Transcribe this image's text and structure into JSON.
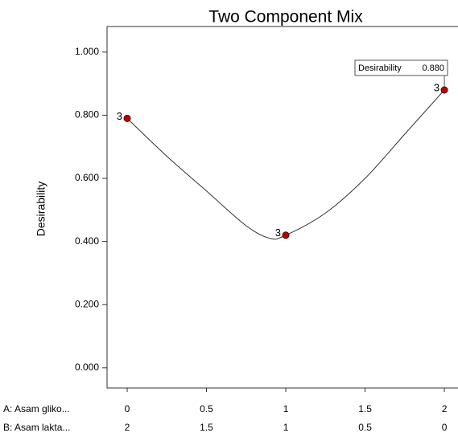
{
  "chart_data": {
    "type": "line",
    "title": "Two Component Mix",
    "y_label": "Desirability",
    "x_label": "A: Asam gliko...",
    "x2_label": "B: Asam lakta...",
    "xlim": [
      -0.127,
      2.086
    ],
    "ylim": [
      -0.064,
      1.081
    ],
    "xticks": [
      0,
      0.5,
      1,
      1.5,
      2
    ],
    "x2ticks": [
      2,
      1.5,
      1,
      0.5,
      0
    ],
    "yticks": [
      {
        "value": 0,
        "label": "0.000"
      },
      {
        "value": 0.2,
        "label": "0.200"
      },
      {
        "value": 0.4,
        "label": "0.400"
      },
      {
        "value": 0.6,
        "label": "0.600"
      },
      {
        "value": 0.8,
        "label": "0.800"
      },
      {
        "value": 1,
        "label": "1.000"
      }
    ],
    "curve": {
      "color": "#333333",
      "x": [
        0,
        0.25,
        0.5,
        0.75,
        0.9,
        1,
        1.25,
        1.5,
        1.75,
        2
      ],
      "values": [
        0.79,
        0.67,
        0.56,
        0.45,
        0.41,
        0.42,
        0.49,
        0.6,
        0.74,
        0.88
      ]
    },
    "points": {
      "color": "#c00000",
      "x": [
        0,
        1,
        2
      ],
      "values": [
        0.79,
        0.42,
        0.88
      ],
      "point_labels": [
        "3",
        "3",
        "3"
      ]
    },
    "flag": {
      "text": "Desirability",
      "value": 0.88,
      "value_label": "0.880",
      "x": 2
    }
  }
}
